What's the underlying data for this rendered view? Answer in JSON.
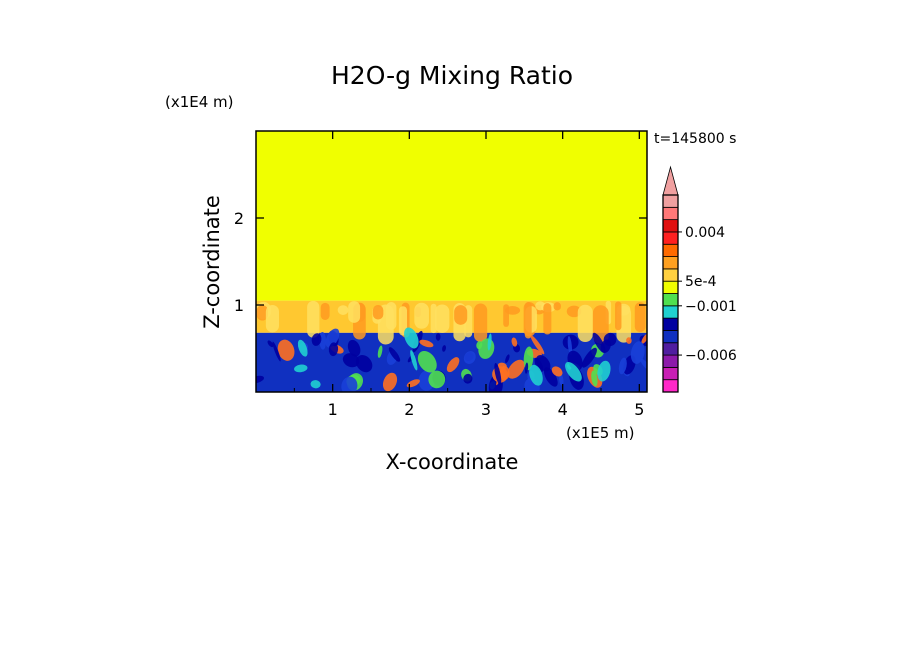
{
  "chart_data": {
    "type": "heatmap",
    "title": "H2O-g Mixing Ratio",
    "xlabel": "X-coordinate",
    "ylabel": "Z-coordinate",
    "x_scale_label": "(x1E5 m)",
    "y_scale_label": "(x1E4 m)",
    "time_label": "t=145800 s",
    "xlim": [
      0,
      5.1
    ],
    "ylim": [
      0,
      3.0
    ],
    "x_ticks": [
      "1",
      "2",
      "3",
      "4",
      "5"
    ],
    "x_tick_values": [
      1,
      2,
      3,
      4,
      5
    ],
    "y_ticks": [
      "1",
      "2"
    ],
    "y_tick_values": [
      1,
      2
    ],
    "regions": [
      {
        "name": "upper",
        "z_range": [
          1.05,
          3.0
        ],
        "color": "#f0ff00"
      },
      {
        "name": "transition",
        "z_range": [
          0.68,
          1.05
        ],
        "color": "#ffc830"
      },
      {
        "name": "lower",
        "z_range": [
          0.0,
          0.68
        ],
        "color": "#1030c0"
      }
    ],
    "colorbar": {
      "colors": [
        "#ff28c8",
        "#c81eb4",
        "#8c1aaa",
        "#501ea0",
        "#1030c0",
        "#0000a0",
        "#20d0d0",
        "#50e050",
        "#f0ff00",
        "#ffd040",
        "#ffa020",
        "#ff6a00",
        "#ff2020",
        "#e01010",
        "#ff7878",
        "#f0a0a0"
      ],
      "triangle_color": "#f0a0a0",
      "labels": [
        {
          "text": "0.004",
          "value": 0.004
        },
        {
          "text": "5e-4",
          "value": 0.0005
        },
        {
          "text": "−0.001",
          "value": -0.001
        },
        {
          "text": "−0.006",
          "value": -0.006
        }
      ]
    }
  }
}
